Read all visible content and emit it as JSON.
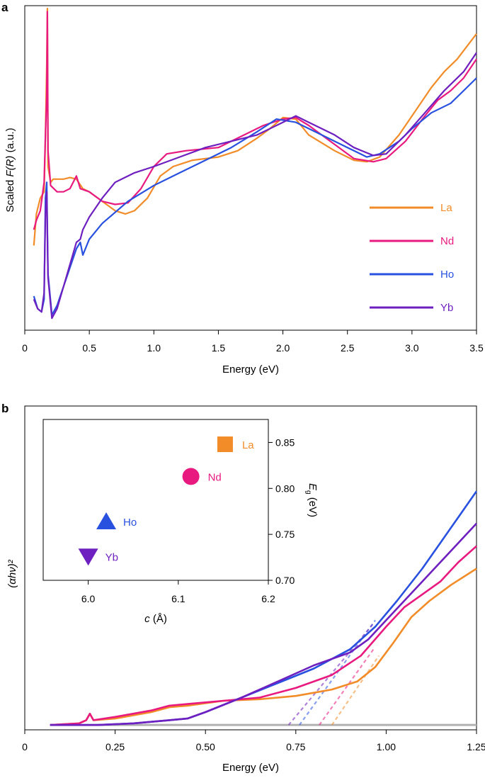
{
  "chart_data": [
    {
      "panel_label": "a",
      "type": "line",
      "xlabel": "Energy (eV)",
      "ylabel_prefix": "Scaled ",
      "ylabel_var": "F(R)",
      "ylabel_suffix": " (a.u.)",
      "xlim": [
        0,
        3.5
      ],
      "ylim": [
        0,
        1
      ],
      "xticks": [
        "0",
        "0.5",
        "1.0",
        "1.5",
        "2.0",
        "2.5",
        "3.0",
        "3.5"
      ],
      "xtick_values": [
        0,
        0.5,
        1.0,
        1.5,
        2.0,
        2.5,
        3.0,
        3.5
      ],
      "legend_position": "right",
      "series": [
        {
          "name": "La",
          "color": "#F28C28",
          "points": [
            [
              0.07,
              0.25
            ],
            [
              0.09,
              0.35
            ],
            [
              0.12,
              0.4
            ],
            [
              0.15,
              0.42
            ],
            [
              0.16,
              0.6
            ],
            [
              0.17,
              0.82
            ],
            [
              0.175,
              1.0
            ],
            [
              0.18,
              0.5
            ],
            [
              0.2,
              0.45
            ],
            [
              0.22,
              0.46
            ],
            [
              0.3,
              0.46
            ],
            [
              0.35,
              0.465
            ],
            [
              0.4,
              0.46
            ],
            [
              0.45,
              0.43
            ],
            [
              0.5,
              0.42
            ],
            [
              0.6,
              0.39
            ],
            [
              0.7,
              0.36
            ],
            [
              0.78,
              0.35
            ],
            [
              0.85,
              0.36
            ],
            [
              0.95,
              0.4
            ],
            [
              1.05,
              0.47
            ],
            [
              1.15,
              0.5
            ],
            [
              1.3,
              0.52
            ],
            [
              1.5,
              0.53
            ],
            [
              1.65,
              0.55
            ],
            [
              1.8,
              0.59
            ],
            [
              1.9,
              0.62
            ],
            [
              2.0,
              0.655
            ],
            [
              2.1,
              0.65
            ],
            [
              2.2,
              0.6
            ],
            [
              2.4,
              0.55
            ],
            [
              2.55,
              0.52
            ],
            [
              2.65,
              0.515
            ],
            [
              2.75,
              0.53
            ],
            [
              2.9,
              0.6
            ],
            [
              3.0,
              0.66
            ],
            [
              3.15,
              0.75
            ],
            [
              3.25,
              0.8
            ],
            [
              3.35,
              0.84
            ],
            [
              3.5,
              0.92
            ]
          ]
        },
        {
          "name": "Nd",
          "color": "#E8197F",
          "points": [
            [
              0.07,
              0.3
            ],
            [
              0.09,
              0.33
            ],
            [
              0.12,
              0.36
            ],
            [
              0.15,
              0.45
            ],
            [
              0.16,
              0.6
            ],
            [
              0.17,
              0.72
            ],
            [
              0.175,
              0.99
            ],
            [
              0.18,
              0.55
            ],
            [
              0.2,
              0.44
            ],
            [
              0.25,
              0.42
            ],
            [
              0.3,
              0.42
            ],
            [
              0.35,
              0.43
            ],
            [
              0.4,
              0.47
            ],
            [
              0.43,
              0.43
            ],
            [
              0.5,
              0.42
            ],
            [
              0.6,
              0.39
            ],
            [
              0.7,
              0.38
            ],
            [
              0.8,
              0.385
            ],
            [
              0.9,
              0.43
            ],
            [
              1.0,
              0.5
            ],
            [
              1.1,
              0.54
            ],
            [
              1.25,
              0.55
            ],
            [
              1.5,
              0.56
            ],
            [
              1.7,
              0.6
            ],
            [
              1.85,
              0.63
            ],
            [
              2.0,
              0.65
            ],
            [
              2.1,
              0.655
            ],
            [
              2.2,
              0.63
            ],
            [
              2.4,
              0.57
            ],
            [
              2.55,
              0.525
            ],
            [
              2.7,
              0.515
            ],
            [
              2.8,
              0.525
            ],
            [
              2.95,
              0.58
            ],
            [
              3.1,
              0.66
            ],
            [
              3.2,
              0.71
            ],
            [
              3.3,
              0.74
            ],
            [
              3.4,
              0.78
            ],
            [
              3.5,
              0.84
            ]
          ]
        },
        {
          "name": "Ho",
          "color": "#2851E0",
          "points": [
            [
              0.07,
              0.09
            ],
            [
              0.1,
              0.05
            ],
            [
              0.13,
              0.04
            ],
            [
              0.15,
              0.08
            ],
            [
              0.16,
              0.4
            ],
            [
              0.17,
              0.45
            ],
            [
              0.18,
              0.16
            ],
            [
              0.21,
              0.03
            ],
            [
              0.25,
              0.06
            ],
            [
              0.3,
              0.12
            ],
            [
              0.35,
              0.18
            ],
            [
              0.4,
              0.24
            ],
            [
              0.43,
              0.26
            ],
            [
              0.45,
              0.22
            ],
            [
              0.5,
              0.27
            ],
            [
              0.6,
              0.32
            ],
            [
              0.8,
              0.39
            ],
            [
              1.0,
              0.44
            ],
            [
              1.2,
              0.48
            ],
            [
              1.4,
              0.52
            ],
            [
              1.6,
              0.56
            ],
            [
              1.8,
              0.61
            ],
            [
              1.95,
              0.65
            ],
            [
              2.1,
              0.64
            ],
            [
              2.3,
              0.6
            ],
            [
              2.5,
              0.56
            ],
            [
              2.65,
              0.53
            ],
            [
              2.75,
              0.54
            ],
            [
              2.9,
              0.58
            ],
            [
              3.0,
              0.62
            ],
            [
              3.15,
              0.67
            ],
            [
              3.3,
              0.7
            ],
            [
              3.4,
              0.74
            ],
            [
              3.5,
              0.78
            ]
          ]
        },
        {
          "name": "Yb",
          "color": "#6E1FBF",
          "points": [
            [
              0.07,
              0.08
            ],
            [
              0.1,
              0.05
            ],
            [
              0.13,
              0.04
            ],
            [
              0.15,
              0.1
            ],
            [
              0.16,
              0.35
            ],
            [
              0.17,
              0.42
            ],
            [
              0.18,
              0.15
            ],
            [
              0.21,
              0.02
            ],
            [
              0.25,
              0.05
            ],
            [
              0.3,
              0.12
            ],
            [
              0.35,
              0.19
            ],
            [
              0.4,
              0.26
            ],
            [
              0.43,
              0.27
            ],
            [
              0.45,
              0.3
            ],
            [
              0.5,
              0.34
            ],
            [
              0.6,
              0.4
            ],
            [
              0.7,
              0.45
            ],
            [
              0.85,
              0.48
            ],
            [
              1.0,
              0.5
            ],
            [
              1.2,
              0.53
            ],
            [
              1.4,
              0.56
            ],
            [
              1.6,
              0.58
            ],
            [
              1.8,
              0.6
            ],
            [
              2.0,
              0.64
            ],
            [
              2.1,
              0.66
            ],
            [
              2.2,
              0.64
            ],
            [
              2.4,
              0.6
            ],
            [
              2.55,
              0.56
            ],
            [
              2.7,
              0.535
            ],
            [
              2.8,
              0.54
            ],
            [
              2.95,
              0.6
            ],
            [
              3.1,
              0.67
            ],
            [
              3.25,
              0.74
            ],
            [
              3.4,
              0.8
            ],
            [
              3.5,
              0.86
            ]
          ]
        }
      ]
    },
    {
      "panel_label": "b",
      "type": "line",
      "xlabel": "Energy (eV)",
      "ylabel": "(αhν)²",
      "xlim": [
        0,
        1.25
      ],
      "ylim": [
        0,
        1
      ],
      "xticks": [
        "0",
        "0.25",
        "0.50",
        "0.75",
        "1.00",
        "1.25"
      ],
      "xtick_values": [
        0,
        0.25,
        0.5,
        0.75,
        1.0,
        1.25
      ],
      "baseline": {
        "y": 0.015,
        "x": [
          0.07,
          1.25
        ],
        "color": "#B0B0B0"
      },
      "series": [
        {
          "name": "La",
          "color": "#F28C28",
          "points": [
            [
              0.07,
              0.015
            ],
            [
              0.15,
              0.02
            ],
            [
              0.17,
              0.03
            ],
            [
              0.18,
              0.05
            ],
            [
              0.19,
              0.03
            ],
            [
              0.25,
              0.035
            ],
            [
              0.35,
              0.055
            ],
            [
              0.4,
              0.07
            ],
            [
              0.45,
              0.075
            ],
            [
              0.55,
              0.09
            ],
            [
              0.65,
              0.095
            ],
            [
              0.75,
              0.105
            ],
            [
              0.85,
              0.125
            ],
            [
              0.92,
              0.15
            ],
            [
              0.97,
              0.195
            ],
            [
              1.02,
              0.27
            ],
            [
              1.07,
              0.35
            ],
            [
              1.12,
              0.4
            ],
            [
              1.18,
              0.45
            ],
            [
              1.25,
              0.5
            ]
          ],
          "fit": [
            [
              0.85,
              0.015
            ],
            [
              0.98,
              0.23
            ]
          ]
        },
        {
          "name": "Nd",
          "color": "#E8197F",
          "points": [
            [
              0.07,
              0.015
            ],
            [
              0.15,
              0.02
            ],
            [
              0.17,
              0.03
            ],
            [
              0.18,
              0.05
            ],
            [
              0.19,
              0.03
            ],
            [
              0.25,
              0.04
            ],
            [
              0.35,
              0.06
            ],
            [
              0.4,
              0.075
            ],
            [
              0.45,
              0.08
            ],
            [
              0.55,
              0.09
            ],
            [
              0.65,
              0.1
            ],
            [
              0.75,
              0.13
            ],
            [
              0.85,
              0.17
            ],
            [
              0.93,
              0.23
            ],
            [
              1.0,
              0.32
            ],
            [
              1.05,
              0.38
            ],
            [
              1.1,
              0.42
            ],
            [
              1.15,
              0.46
            ],
            [
              1.2,
              0.52
            ],
            [
              1.25,
              0.57
            ]
          ],
          "fit": [
            [
              0.815,
              0.015
            ],
            [
              0.965,
              0.25
            ]
          ]
        },
        {
          "name": "Ho",
          "color": "#2851E0",
          "points": [
            [
              0.07,
              0.015
            ],
            [
              0.2,
              0.015
            ],
            [
              0.3,
              0.02
            ],
            [
              0.4,
              0.03
            ],
            [
              0.45,
              0.035
            ],
            [
              0.5,
              0.055
            ],
            [
              0.6,
              0.1
            ],
            [
              0.7,
              0.145
            ],
            [
              0.8,
              0.19
            ],
            [
              0.9,
              0.25
            ],
            [
              0.97,
              0.32
            ],
            [
              1.03,
              0.4
            ],
            [
              1.1,
              0.5
            ],
            [
              1.15,
              0.58
            ],
            [
              1.2,
              0.66
            ],
            [
              1.25,
              0.74
            ]
          ],
          "fit": [
            [
              0.76,
              0.015
            ],
            [
              0.97,
              0.34
            ]
          ]
        },
        {
          "name": "Yb",
          "color": "#6E1FBF",
          "points": [
            [
              0.07,
              0.015
            ],
            [
              0.2,
              0.015
            ],
            [
              0.3,
              0.02
            ],
            [
              0.4,
              0.03
            ],
            [
              0.45,
              0.035
            ],
            [
              0.5,
              0.055
            ],
            [
              0.6,
              0.1
            ],
            [
              0.7,
              0.15
            ],
            [
              0.8,
              0.2
            ],
            [
              0.9,
              0.24
            ],
            [
              0.95,
              0.28
            ],
            [
              1.0,
              0.34
            ],
            [
              1.05,
              0.4
            ],
            [
              1.1,
              0.46
            ],
            [
              1.15,
              0.52
            ],
            [
              1.2,
              0.58
            ],
            [
              1.25,
              0.64
            ]
          ],
          "fit": [
            [
              0.73,
              0.015
            ],
            [
              0.965,
              0.33
            ]
          ]
        }
      ],
      "inset": {
        "type": "scatter",
        "xlabel_var": "c",
        "xlabel_unit": " (Å)",
        "ylabel_main": "E",
        "ylabel_sub": "g",
        "ylabel_unit": " (eV)",
        "xlim": [
          5.95,
          6.2
        ],
        "ylim": [
          0.7,
          0.875
        ],
        "xticks": [
          "6.0",
          "6.1",
          "6.2"
        ],
        "xtick_values": [
          6.0,
          6.1,
          6.2
        ],
        "yticks": [
          "0.70",
          "0.75",
          "0.80",
          "0.85"
        ],
        "ytick_values": [
          0.7,
          0.75,
          0.8,
          0.85
        ],
        "points": [
          {
            "name": "La",
            "x": 6.152,
            "y": 0.848,
            "marker": "square",
            "color": "#F28C28"
          },
          {
            "name": "Nd",
            "x": 6.114,
            "y": 0.813,
            "marker": "circle",
            "color": "#E8197F"
          },
          {
            "name": "Ho",
            "x": 6.02,
            "y": 0.764,
            "marker": "triangle-up",
            "color": "#2851E0"
          },
          {
            "name": "Yb",
            "x": 6.0,
            "y": 0.726,
            "marker": "triangle-down",
            "color": "#6E1FBF"
          }
        ]
      }
    }
  ]
}
